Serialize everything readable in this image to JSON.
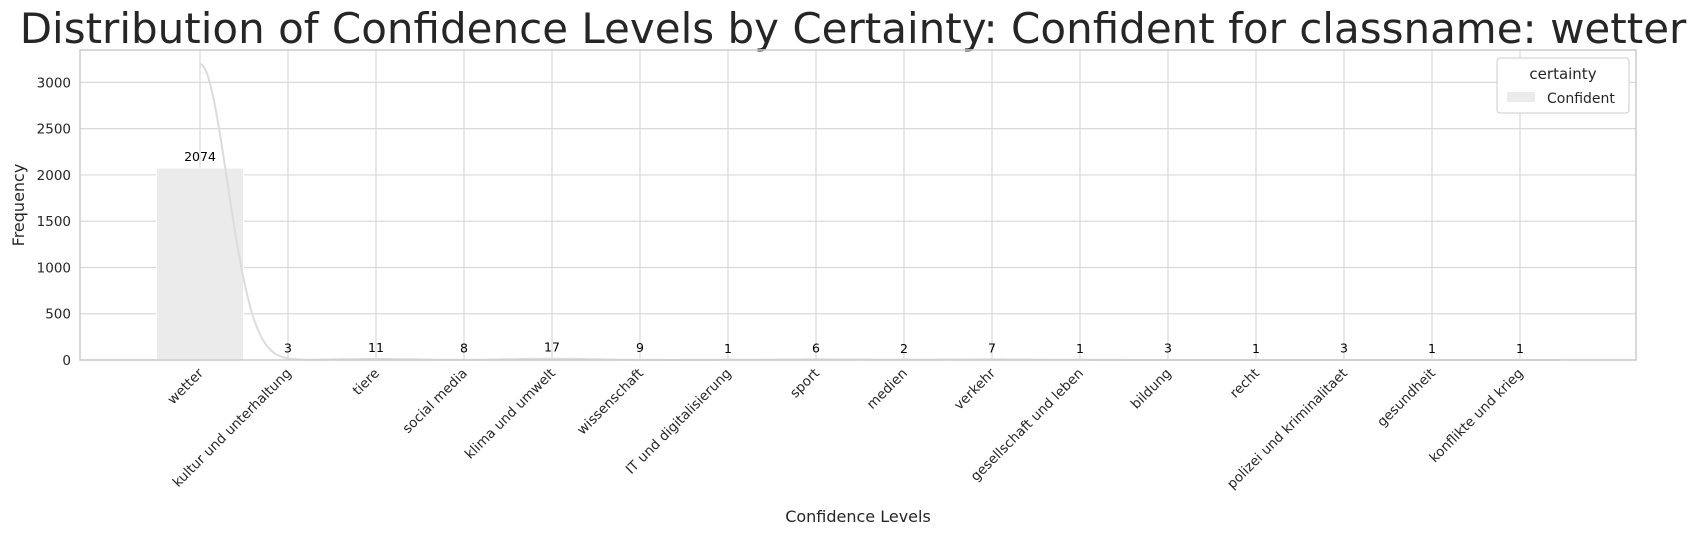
{
  "chart_data": {
    "type": "bar",
    "title": "Distribution of Confidence Levels by Certainty: Confident for classname: wetter",
    "xlabel": "Confidence Levels",
    "ylabel": "Frequency",
    "categories": [
      "wetter",
      "kultur und unterhaltung",
      "tiere",
      "social media",
      "klima und umwelt",
      "wissenschaft",
      "IT und digitalisierung",
      "sport",
      "medien",
      "verkehr",
      "gesellschaft und leben",
      "bildung",
      "recht",
      "polizei und kriminalitaet",
      "gesundheit",
      "konflikte und krieg"
    ],
    "series": [
      {
        "name": "Confident",
        "values": [
          2074,
          3,
          11,
          8,
          17,
          9,
          1,
          6,
          2,
          7,
          1,
          3,
          1,
          3,
          1,
          1
        ]
      }
    ],
    "data_labels": [
      "2074",
      "3",
      "11",
      "8",
      "17",
      "9",
      "1",
      "6",
      "2",
      "7",
      "1",
      "3",
      "1",
      "3",
      "1",
      "1"
    ],
    "ylim": [
      0,
      3350
    ],
    "yticks": [
      0,
      500,
      1000,
      1500,
      2000,
      2500,
      3000
    ],
    "grid": true,
    "kde_curve": true,
    "legend": {
      "title": "certainty",
      "placement": "top-right",
      "entries": [
        "Confident"
      ]
    },
    "colors": {
      "bar": "#ebebeb",
      "kde": "#dcdcdc",
      "grid": "#d9d9d9",
      "frame": "#cccccc"
    }
  }
}
